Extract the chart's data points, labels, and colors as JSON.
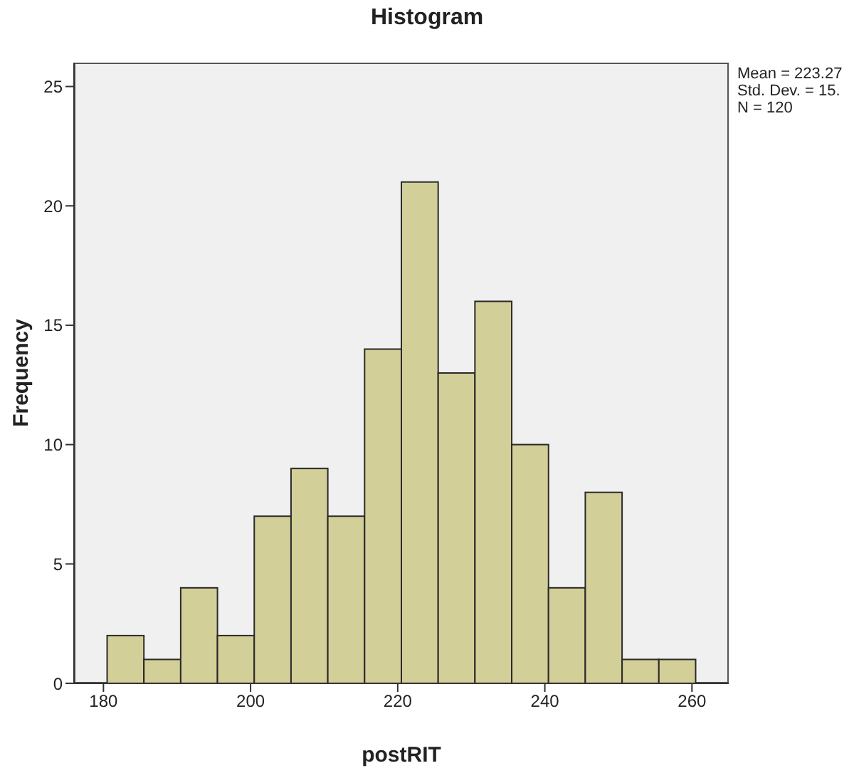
{
  "chart_data": {
    "type": "histogram",
    "title": "Histogram",
    "xlabel": "postRIT",
    "ylabel": "Frequency",
    "annotations": [
      "Mean = 223.27",
      "Std. Dev. = 15.",
      "N = 120"
    ],
    "bins": [
      180.5,
      185.5,
      190.5,
      195.5,
      200.5,
      205.5,
      210.5,
      215.5,
      220.5,
      225.5,
      230.5,
      235.5,
      240.5,
      245.5,
      250.5,
      255.5,
      260.5
    ],
    "values": [
      2,
      1,
      4,
      2,
      7,
      9,
      7,
      14,
      21,
      13,
      16,
      10,
      4,
      8,
      1,
      1
    ],
    "color": "#d3cf98",
    "xlim": [
      176,
      265
    ],
    "xticks": [
      180,
      200,
      220,
      240,
      260
    ],
    "ylim": [
      0,
      26
    ],
    "yticks": [
      0,
      5,
      10,
      15,
      20,
      25
    ],
    "grid": false
  }
}
